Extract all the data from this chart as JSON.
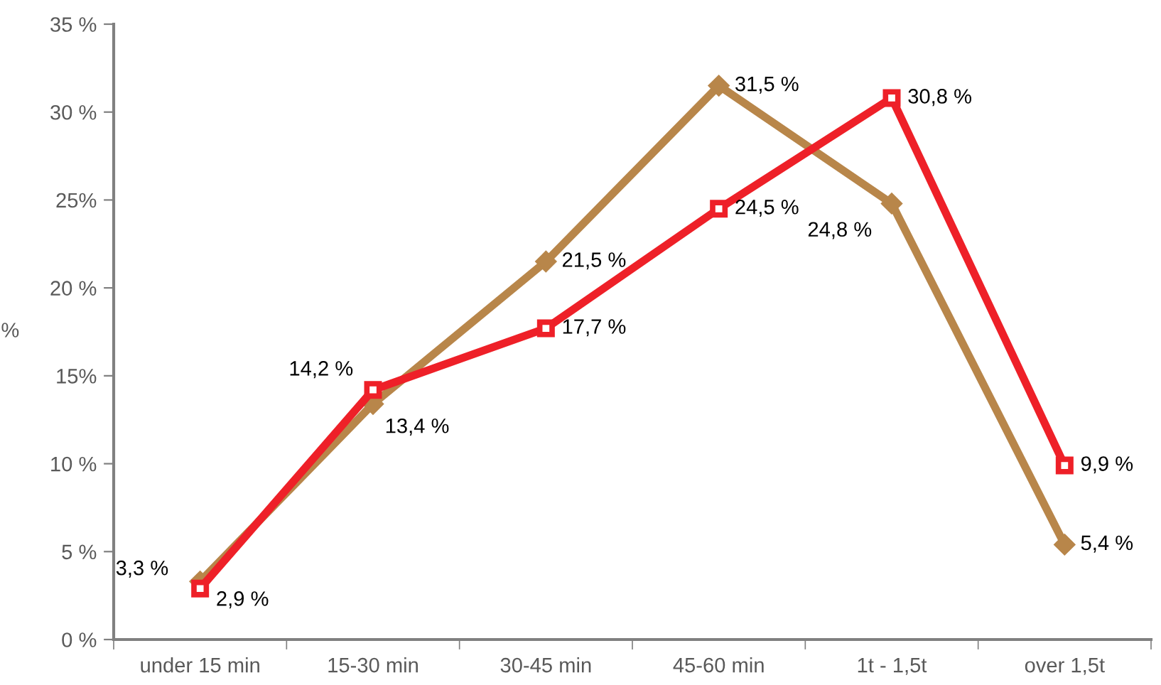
{
  "chart_data": {
    "type": "line",
    "ylabel": "%",
    "categories": [
      "under 15 min",
      "15-30 min",
      "30-45 min",
      "45-60 min",
      "1t - 1,5t",
      "over 1,5t"
    ],
    "series": [
      {
        "color": "#b8864a",
        "marker": "diamond",
        "values": [
          3.3,
          13.4,
          21.5,
          31.5,
          24.8,
          5.4
        ],
        "value_labels": [
          "3,3 %",
          "13,4 %",
          "21,5 %",
          "31,5 %",
          "24,8 %",
          "5,4 %"
        ]
      },
      {
        "color": "#ee2028",
        "marker": "square",
        "values": [
          2.9,
          14.2,
          17.7,
          24.5,
          30.8,
          9.9
        ],
        "value_labels": [
          "2,9 %",
          "14,2 %",
          "17,7 %",
          "24,5 %",
          "30,8 %",
          "9,9 %"
        ]
      }
    ],
    "ylim": [
      0,
      35
    ],
    "yticks": [
      {
        "value": 0,
        "label": "0 %"
      },
      {
        "value": 5,
        "label": "5 %"
      },
      {
        "value": 10,
        "label": "10 %"
      },
      {
        "value": 15,
        "label": "15%"
      },
      {
        "value": 20,
        "label": "20 %"
      },
      {
        "value": 25,
        "label": "25%"
      },
      {
        "value": 30,
        "label": "30 %"
      },
      {
        "value": 35,
        "label": "35 %"
      }
    ],
    "grid": false,
    "legend": false
  }
}
